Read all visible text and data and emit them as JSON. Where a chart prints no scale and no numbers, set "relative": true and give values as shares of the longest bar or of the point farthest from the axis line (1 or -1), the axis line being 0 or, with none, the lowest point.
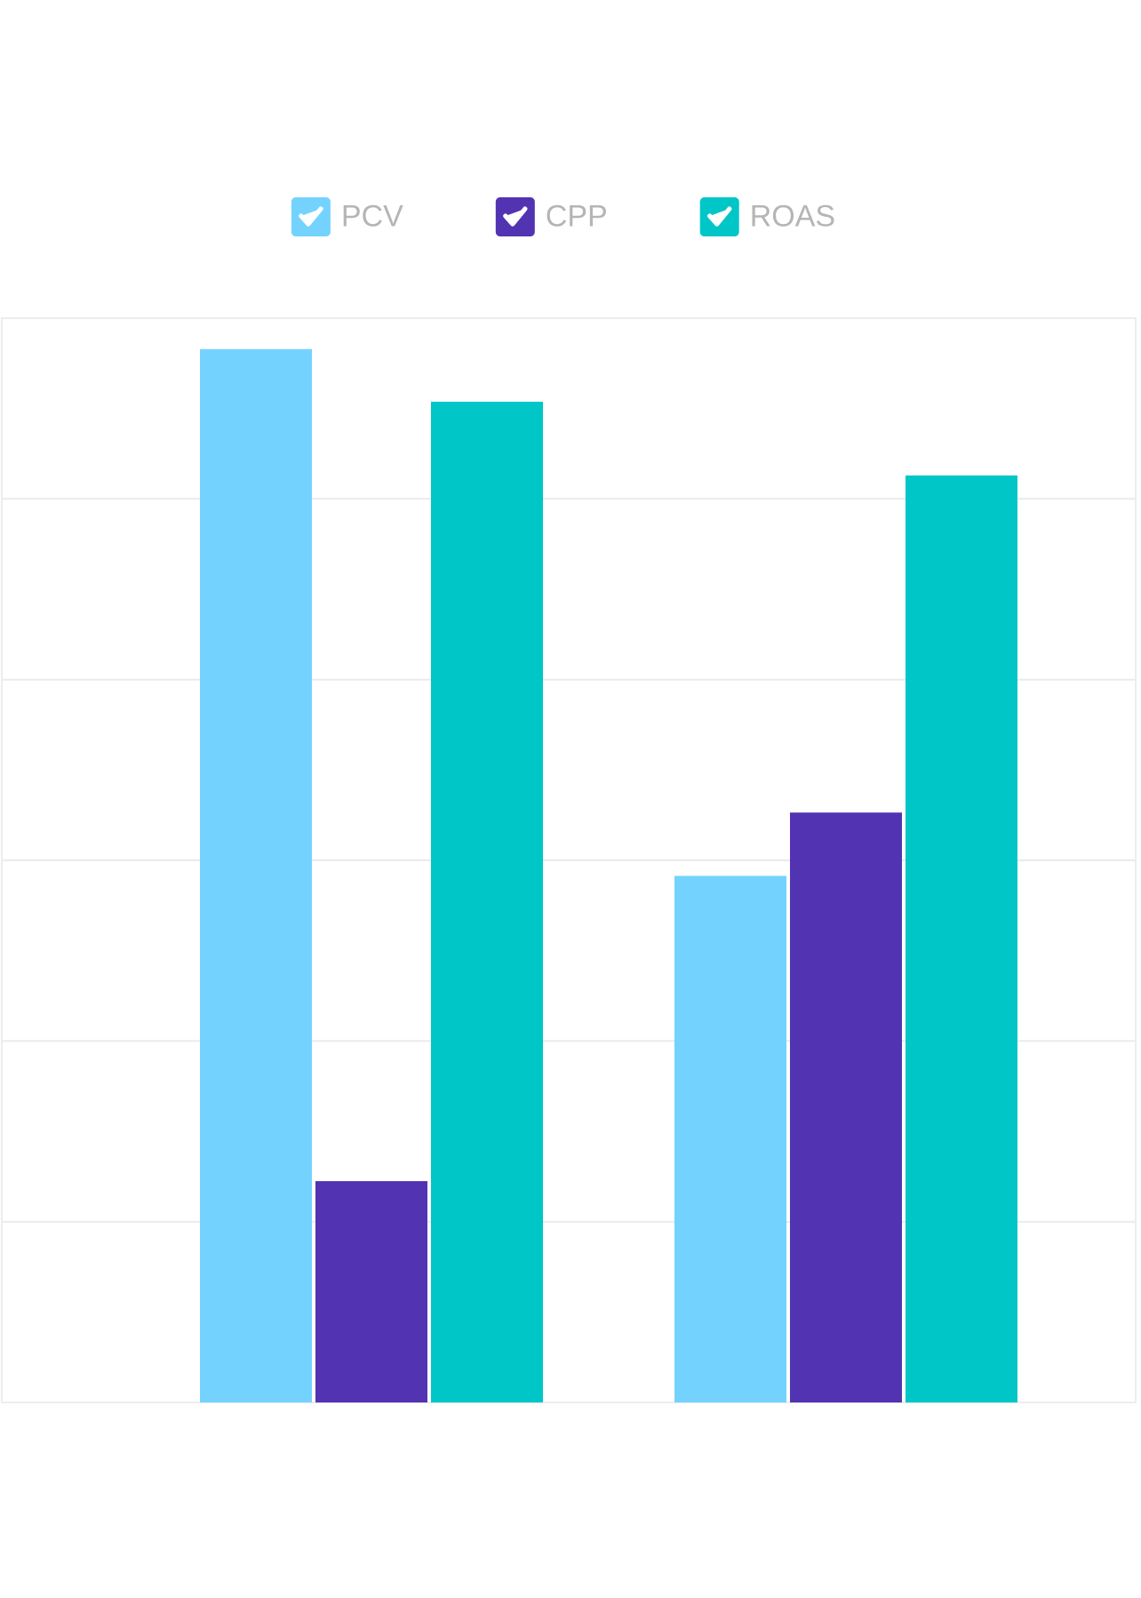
{
  "chart_data": {
    "type": "bar",
    "categories": [
      null,
      null
    ],
    "relative": true,
    "series": [
      {
        "name": "PCV",
        "color": "#74d3fe",
        "values": [
          1,
          0.5
        ]
      },
      {
        "name": "CPP",
        "color": "#5233b2",
        "values": [
          0.21,
          0.56
        ]
      },
      {
        "name": "ROAS",
        "color": "#00c6c8",
        "values": [
          0.95,
          0.88
        ]
      }
    ],
    "legend": "top",
    "grid": "y"
  }
}
